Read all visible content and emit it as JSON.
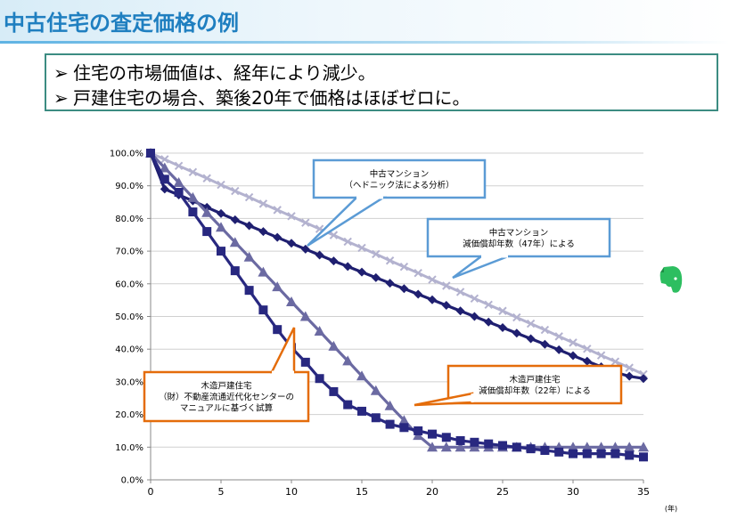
{
  "slide": {
    "title": "中古住宅の査定価格の例",
    "bullets": [
      "住宅の市場価値は、経年により減少。",
      "戸建住宅の場合、築後20年で価格はほぼゼロに。"
    ],
    "bullet_marker": "➢"
  },
  "logo": {
    "icon": "evernote-elephant-icon",
    "color": "#2dbe60"
  },
  "chart_data": {
    "type": "line",
    "x": [
      0,
      1,
      2,
      3,
      4,
      5,
      6,
      7,
      8,
      9,
      10,
      11,
      12,
      13,
      14,
      15,
      16,
      17,
      18,
      19,
      20,
      21,
      22,
      23,
      24,
      25,
      26,
      27,
      28,
      29,
      30,
      31,
      32,
      33,
      34,
      35
    ],
    "xticks": [
      0,
      5,
      10,
      15,
      20,
      25,
      30,
      35
    ],
    "xlim": [
      0,
      35
    ],
    "ylim": [
      0,
      100
    ],
    "yticks": [
      "0.0%",
      "10.0%",
      "20.0%",
      "30.0%",
      "40.0%",
      "50.0%",
      "60.0%",
      "70.0%",
      "80.0%",
      "90.0%",
      "100.0%"
    ],
    "xunit": "(年)",
    "series": [
      {
        "name": "中古マンション 減価償却年数（47年）による",
        "marker": "x",
        "color": "#b3b2cf",
        "values": [
          100,
          98.1,
          96.1,
          94.2,
          92.3,
          90.3,
          88.4,
          86.5,
          84.5,
          82.6,
          80.7,
          78.7,
          76.8,
          74.9,
          72.9,
          71.0,
          69.1,
          67.1,
          65.2,
          63.3,
          61.3,
          59.4,
          57.5,
          55.5,
          53.6,
          51.7,
          49.7,
          47.8,
          45.9,
          43.9,
          42.0,
          40.1,
          38.1,
          36.2,
          34.3,
          32.3
        ]
      },
      {
        "name": "中古マンション（ヘドニック法による分析）",
        "marker": "diamond",
        "color": "#1f1f70",
        "values": [
          100,
          89.0,
          87.2,
          85.4,
          83.4,
          81.5,
          79.6,
          77.8,
          76.0,
          74.2,
          72.4,
          70.6,
          68.8,
          67.0,
          65.3,
          63.6,
          61.9,
          60.2,
          58.5,
          56.8,
          55.1,
          53.4,
          51.7,
          50.0,
          48.3,
          46.6,
          44.9,
          43.2,
          41.5,
          39.8,
          38.0,
          36.3,
          34.6,
          32.9,
          31.7,
          31.0
        ]
      },
      {
        "name": "木造戸建住宅 減価償却年数（22年）による",
        "marker": "triangle",
        "color": "#6b6aa2",
        "values": [
          100,
          95.5,
          91.0,
          86.4,
          81.8,
          77.3,
          72.7,
          68.2,
          63.6,
          59.1,
          54.5,
          50.0,
          45.5,
          40.9,
          36.4,
          31.8,
          27.3,
          22.7,
          18.2,
          13.6,
          10.0,
          10.0,
          10.0,
          10.0,
          10.0,
          10.0,
          10.0,
          10.0,
          10.0,
          10.0,
          10.0,
          10.0,
          10.0,
          10.0,
          10.0,
          10.0
        ]
      },
      {
        "name": "木造戸建住宅（財）不動産流通近代化センターのマニュアルに基づく試算",
        "marker": "square",
        "color": "#282880",
        "values": [
          100,
          92.0,
          88.0,
          82.0,
          76.0,
          70.0,
          64.0,
          58.0,
          52.0,
          46.0,
          40.5,
          36.0,
          31.0,
          27.0,
          23.0,
          21.0,
          19.0,
          17.0,
          16.0,
          15.0,
          14.0,
          13.0,
          12.0,
          11.5,
          11.0,
          10.5,
          10.0,
          9.5,
          9.0,
          8.5,
          8.0,
          8.0,
          8.0,
          8.0,
          7.5,
          7.0
        ]
      }
    ],
    "callouts": [
      {
        "lines": [
          "中古マンション",
          "（ヘドニック法による分析）"
        ],
        "color": "#5b9bd5"
      },
      {
        "lines": [
          "中古マンション",
          "減価償却年数（47年）による"
        ],
        "color": "#5b9bd5"
      },
      {
        "lines": [
          "木造戸建住宅",
          "（財）不動産流通近代化センターの",
          "マニュアルに基づく試算"
        ],
        "color": "#e46c0a"
      },
      {
        "lines": [
          "木造戸建住宅",
          "減価償却年数（22年）による"
        ],
        "color": "#e46c0a"
      }
    ]
  }
}
